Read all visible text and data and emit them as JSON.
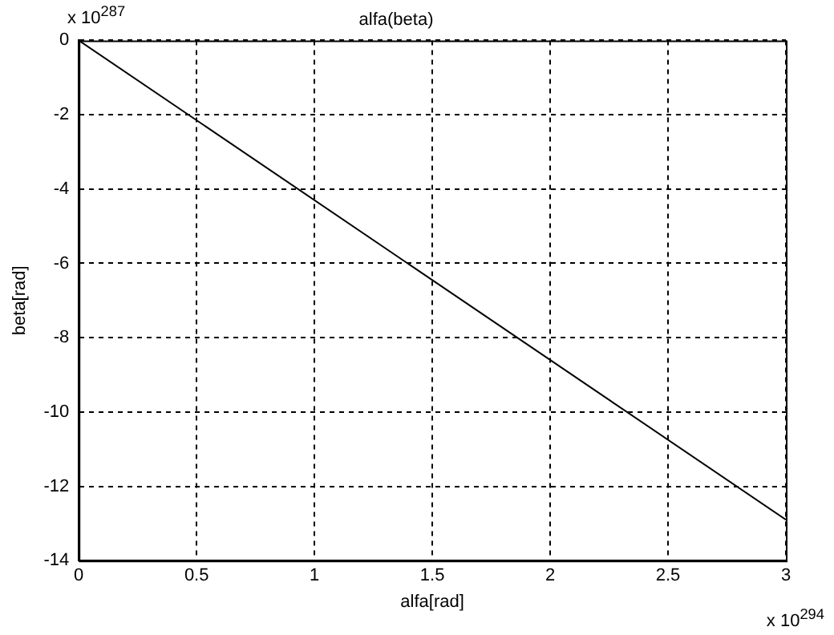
{
  "chart_data": {
    "type": "line",
    "title": "alfa(beta)",
    "xlabel": "alfa[rad]",
    "ylabel": "beta[rad]",
    "annotations": [
      "x 10$^{287}$",
      "x 10$^{294}$"
    ],
    "x": [
      0,
      3
    ],
    "series": [
      {
        "color": "#000000",
        "values": [
          0,
          -12.9
        ]
      }
    ],
    "xlim": [
      0,
      3
    ],
    "xticks": [
      0,
      0.5,
      1,
      1.5,
      2,
      2.5,
      3
    ],
    "ylim": [
      -14,
      0
    ],
    "yticks": [
      -14,
      -12,
      -10,
      -8,
      -6,
      -4,
      -2,
      0
    ],
    "grid": true,
    "legend": false,
    "marker": "none",
    "line_style": "solid"
  }
}
